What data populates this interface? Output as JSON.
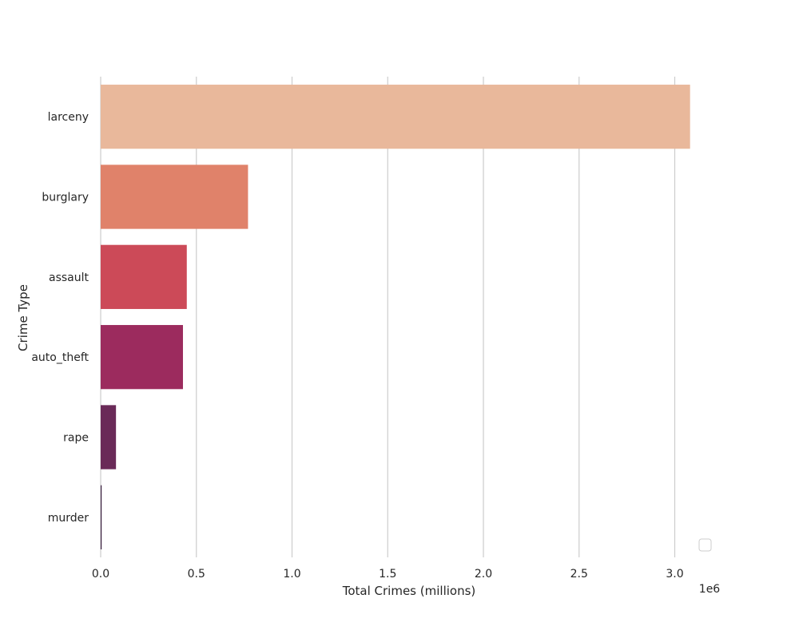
{
  "chart_data": {
    "type": "bar",
    "orientation": "horizontal",
    "title": "",
    "xlabel": "Total Crimes (millions)",
    "ylabel": "Crime Type",
    "x_offset_label": "1e6",
    "xlim": [
      0,
      3.25
    ],
    "x_ticks": [
      "0.0",
      "0.5",
      "1.0",
      "1.5",
      "2.0",
      "2.5",
      "3.0"
    ],
    "x_tick_values": [
      0.0,
      0.5,
      1.0,
      1.5,
      2.0,
      2.5,
      3.0
    ],
    "categories": [
      "larceny",
      "burglary",
      "assault",
      "auto_theft",
      "rape",
      "murder"
    ],
    "values": [
      3.08,
      0.77,
      0.45,
      0.43,
      0.08,
      0.005
    ],
    "colors": [
      "#e9b89b",
      "#e0826a",
      "#cc4a58",
      "#9c2b5e",
      "#6a2a58",
      "#3a1f3f"
    ],
    "grid": "vertical",
    "legend": {
      "position": "lower-right",
      "entries": []
    }
  }
}
